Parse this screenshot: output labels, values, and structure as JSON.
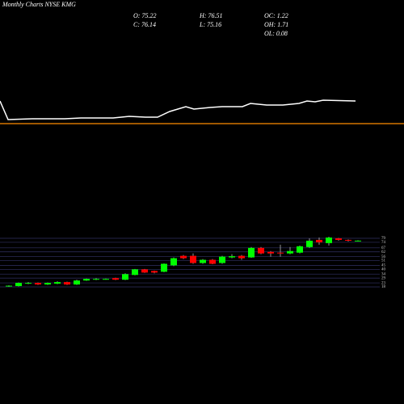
{
  "chart_data": {
    "type": "candlestick",
    "title": "Monthly Charts NYSE KMG",
    "info": [
      "O: 75.22",
      "H: 76.51",
      "OC: 1.22",
      "C: 76.14",
      "L: 75.16",
      "OH: 1.71",
      "OL: 0.08"
    ],
    "open": [
      18.5,
      19,
      22,
      23,
      21,
      22,
      24,
      21,
      26,
      27,
      27.5,
      29,
      27,
      33,
      40,
      38,
      37,
      45,
      57,
      57,
      48,
      52,
      48,
      55,
      57,
      55,
      67,
      62,
      61,
      60,
      61,
      68,
      77,
      73,
      79,
      77,
      75.22
    ],
    "high": [
      20,
      23.5,
      24,
      23.5,
      23.5,
      25,
      24.5,
      27,
      28.5,
      29,
      28.5,
      29.5,
      35,
      40.5,
      40.5,
      38.5,
      47.5,
      55,
      58,
      60,
      53,
      53,
      57,
      59,
      58,
      68,
      68,
      63,
      71,
      68,
      70,
      79,
      80,
      81,
      79.5,
      77.5,
      76.51
    ],
    "low": [
      18,
      18.5,
      21.5,
      20.5,
      20.5,
      21.5,
      20.5,
      20.5,
      25.5,
      26.5,
      27,
      26.5,
      26.5,
      32.5,
      35.5,
      35,
      36.5,
      44,
      53,
      47,
      47,
      46.5,
      47,
      54,
      52,
      54.5,
      59,
      56,
      56,
      59,
      60,
      67,
      71,
      70,
      76,
      75,
      75.16
    ],
    "close": [
      19.5,
      23,
      23,
      21,
      23,
      24,
      21,
      26,
      28,
      28,
      28,
      27,
      34,
      40,
      36,
      36,
      47,
      54,
      54,
      48,
      52,
      47,
      56,
      56.5,
      54,
      67,
      60,
      60,
      60,
      63,
      69,
      76,
      74,
      80,
      77,
      76,
      76.14
    ],
    "up_color": "#00ff00",
    "down_color": "#ff0000",
    "ylim": [
      15,
      82
    ],
    "yticks": [
      79,
      74,
      67,
      62,
      56,
      51,
      45,
      40,
      34,
      29,
      23,
      18
    ],
    "line": {
      "color": "#ffffff",
      "x": [
        0,
        10,
        40,
        80,
        100,
        140,
        160,
        180,
        195,
        210,
        230,
        240,
        260,
        275,
        300,
        310,
        330,
        350,
        370,
        380,
        390,
        400,
        440
      ],
      "values": [
        35,
        12,
        13,
        13,
        14,
        14,
        16,
        15,
        15,
        22,
        28,
        25,
        27,
        28,
        28,
        32,
        30,
        30,
        32,
        35,
        34,
        36,
        35
      ],
      "xlim": [
        0,
        500
      ],
      "ylim": [
        0,
        40
      ],
      "level": 7,
      "level_color": "#ff8c00"
    }
  }
}
